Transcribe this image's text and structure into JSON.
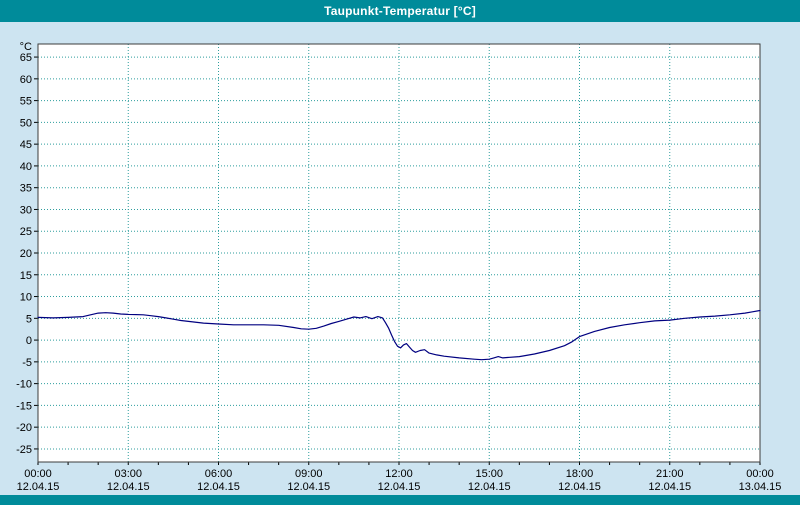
{
  "window": {
    "title": "Taupunkt-Temperatur [°C]"
  },
  "chart_data": {
    "type": "line",
    "title": "Taupunkt-Temperatur [°C]",
    "xlabel": "",
    "ylabel": "°C",
    "xlim": [
      0,
      24
    ],
    "ylim": [
      -28,
      68
    ],
    "grid": true,
    "legend": "none",
    "y_ticks": [
      65,
      60,
      55,
      50,
      45,
      40,
      35,
      30,
      25,
      20,
      15,
      10,
      5,
      0,
      -5,
      -10,
      -15,
      -20,
      -25
    ],
    "x_ticks": [
      {
        "hour": 0,
        "time": "00:00",
        "date": "12.04.15"
      },
      {
        "hour": 3,
        "time": "03:00",
        "date": "12.04.15"
      },
      {
        "hour": 6,
        "time": "06:00",
        "date": "12.04.15"
      },
      {
        "hour": 9,
        "time": "09:00",
        "date": "12.04.15"
      },
      {
        "hour": 12,
        "time": "12:00",
        "date": "12.04.15"
      },
      {
        "hour": 15,
        "time": "15:00",
        "date": "12.04.15"
      },
      {
        "hour": 18,
        "time": "18:00",
        "date": "12.04.15"
      },
      {
        "hour": 21,
        "time": "21:00",
        "date": "12.04.15"
      },
      {
        "hour": 24,
        "time": "00:00",
        "date": "13.04.15"
      }
    ],
    "x_minor_tick_step": 1,
    "colors": {
      "line": "#000080",
      "grid": "#2f9e9e",
      "plot_bg": "#ffffff",
      "frame": "#3c3c3c",
      "window_bg": "#cde4f1",
      "titlebar_bg": "#008b9a",
      "titlebar_text": "#ffffff",
      "axis_text": "#000000"
    },
    "series": [
      {
        "name": "Taupunkt-Temperatur",
        "color": "#000080",
        "points": [
          [
            0,
            5.2
          ],
          [
            0.5,
            5.1
          ],
          [
            1,
            5.2
          ],
          [
            1.5,
            5.4
          ],
          [
            1.75,
            5.8
          ],
          [
            2,
            6.2
          ],
          [
            2.25,
            6.3
          ],
          [
            2.5,
            6.2
          ],
          [
            2.75,
            6.0
          ],
          [
            3,
            5.9
          ],
          [
            3.5,
            5.8
          ],
          [
            3.75,
            5.6
          ],
          [
            4,
            5.4
          ],
          [
            4.25,
            5.1
          ],
          [
            4.5,
            4.8
          ],
          [
            4.75,
            4.5
          ],
          [
            5,
            4.3
          ],
          [
            5.5,
            3.9
          ],
          [
            6,
            3.7
          ],
          [
            6.5,
            3.5
          ],
          [
            7,
            3.5
          ],
          [
            7.5,
            3.5
          ],
          [
            8,
            3.4
          ],
          [
            8.5,
            2.9
          ],
          [
            8.75,
            2.6
          ],
          [
            9,
            2.5
          ],
          [
            9.25,
            2.7
          ],
          [
            9.5,
            3.2
          ],
          [
            9.75,
            3.8
          ],
          [
            10,
            4.3
          ],
          [
            10.25,
            4.8
          ],
          [
            10.5,
            5.3
          ],
          [
            10.7,
            5.1
          ],
          [
            10.9,
            5.4
          ],
          [
            11.1,
            4.9
          ],
          [
            11.3,
            5.4
          ],
          [
            11.45,
            5.1
          ],
          [
            11.55,
            4.0
          ],
          [
            11.65,
            2.8
          ],
          [
            11.75,
            1.2
          ],
          [
            11.85,
            -0.3
          ],
          [
            11.95,
            -1.4
          ],
          [
            12.05,
            -1.8
          ],
          [
            12.15,
            -1.1
          ],
          [
            12.25,
            -0.8
          ],
          [
            12.35,
            -1.6
          ],
          [
            12.45,
            -2.4
          ],
          [
            12.55,
            -2.8
          ],
          [
            12.7,
            -2.4
          ],
          [
            12.85,
            -2.2
          ],
          [
            13,
            -3.0
          ],
          [
            13.25,
            -3.4
          ],
          [
            13.5,
            -3.7
          ],
          [
            14,
            -4.1
          ],
          [
            14.5,
            -4.4
          ],
          [
            14.75,
            -4.5
          ],
          [
            15,
            -4.4
          ],
          [
            15.15,
            -4.1
          ],
          [
            15.3,
            -3.8
          ],
          [
            15.45,
            -4.1
          ],
          [
            15.6,
            -4.0
          ],
          [
            16,
            -3.8
          ],
          [
            16.5,
            -3.2
          ],
          [
            17,
            -2.4
          ],
          [
            17.5,
            -1.3
          ],
          [
            17.75,
            -0.4
          ],
          [
            18,
            0.8
          ],
          [
            18.5,
            2.0
          ],
          [
            19,
            2.9
          ],
          [
            19.5,
            3.5
          ],
          [
            20,
            4.0
          ],
          [
            20.5,
            4.4
          ],
          [
            21,
            4.6
          ],
          [
            21.5,
            5.0
          ],
          [
            22,
            5.3
          ],
          [
            22.5,
            5.5
          ],
          [
            23,
            5.8
          ],
          [
            23.5,
            6.2
          ],
          [
            23.75,
            6.5
          ],
          [
            24,
            6.8
          ]
        ]
      }
    ]
  }
}
